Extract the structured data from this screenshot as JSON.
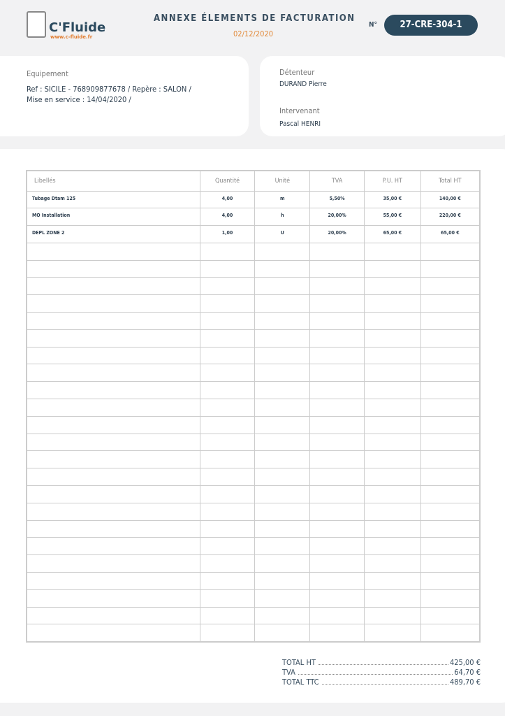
{
  "logo": {
    "name": "C'Fluide",
    "url": "www.c-fluide.fr"
  },
  "header": {
    "title": "ANNEXE ÉLEMENTS DE FACTURATION",
    "date": "02/12/2020",
    "number_label": "N°",
    "number": "27-CRE-304-1"
  },
  "equipment": {
    "label": "Equipement",
    "line1": "Ref : SICILE - 768909877678 / Repère : SALON /",
    "line2": "Mise en service : 14/04/2020 /"
  },
  "holder": {
    "label": "Détenteur",
    "value": "DURAND Pierre"
  },
  "technician": {
    "label": "Intervenant",
    "value": "Pascal HENRI"
  },
  "table": {
    "columns": [
      "Libellés",
      "Quantité",
      "Unité",
      "TVA",
      "P.U. HT",
      "Total HT"
    ],
    "rows": [
      [
        "Tubage Dtam 125",
        "4,00",
        "m",
        "5,50%",
        "35,00 €",
        "140,00 €"
      ],
      [
        "MO Installation",
        "4,00",
        "h",
        "20,00%",
        "55,00 €",
        "220,00 €"
      ],
      [
        "DEPL ZONE 2",
        "1,00",
        "U",
        "20,00%",
        "65,00 €",
        "65,00 €"
      ]
    ]
  },
  "totals": [
    {
      "label": "TOTAL HT",
      "value": "425,00 €"
    },
    {
      "label": "TVA",
      "value": "64,70 €"
    },
    {
      "label": "TOTAL TTC",
      "value": "489,70 €"
    }
  ]
}
